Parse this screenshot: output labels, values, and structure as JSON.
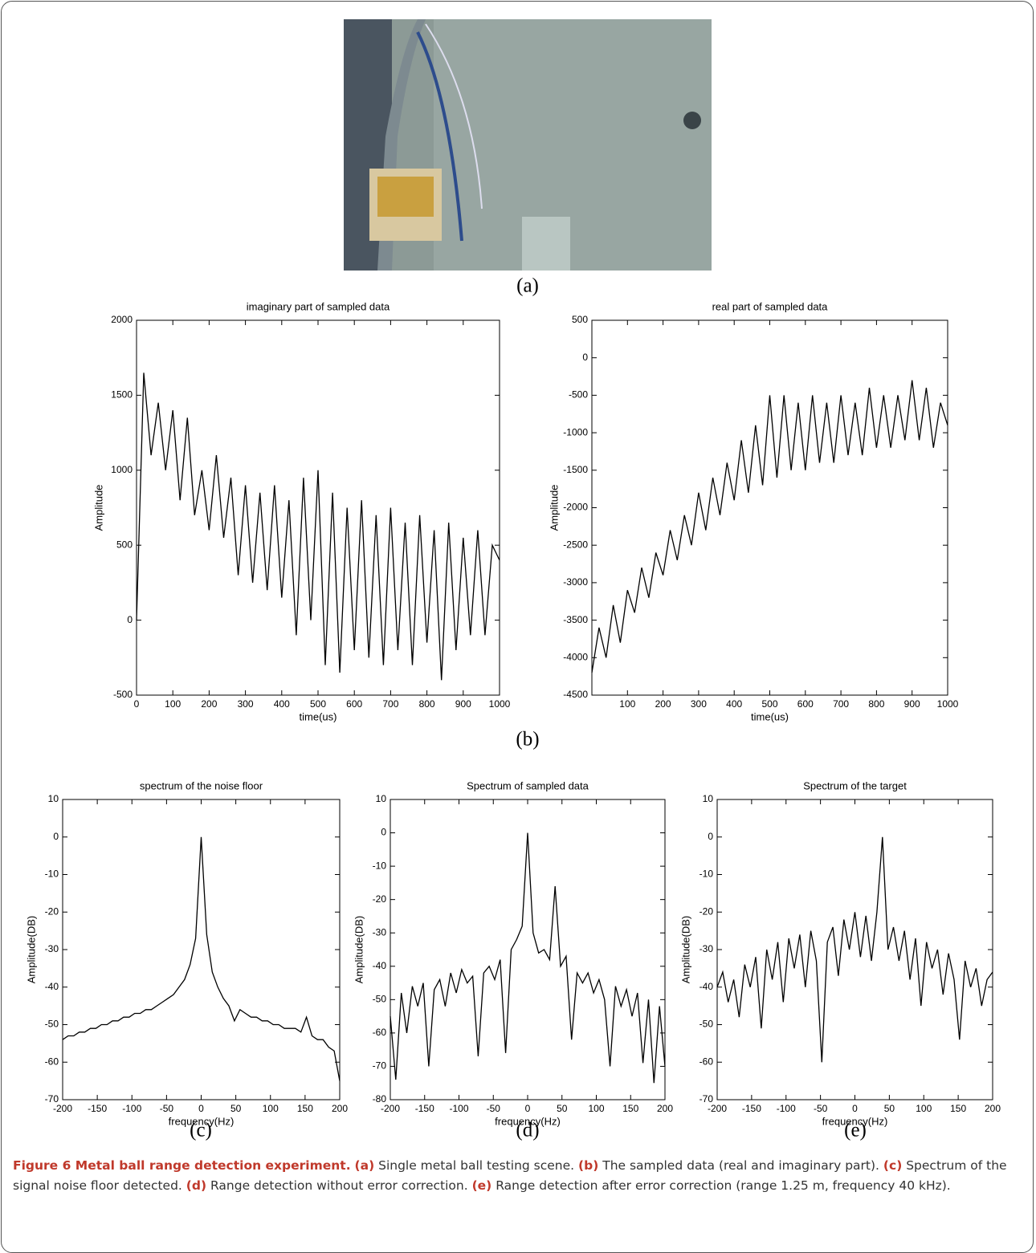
{
  "panels": [
    "(a)",
    "(b)",
    "(c)",
    "(d)",
    "(e)"
  ],
  "caption": {
    "title": "Figure 6 Metal ball range detection experiment.",
    "items": [
      {
        "tag": "(a)",
        "text": " Single metal ball testing scene."
      },
      {
        "tag": "(b)",
        "text": " The sampled data (real and imaginary part)."
      },
      {
        "tag": "(c)",
        "text": " Spectrum of the signal noise floor detected."
      },
      {
        "tag": "(d)",
        "text": " Range detection without error correction."
      },
      {
        "tag": "(e)",
        "text": " Range detection after error correction (range 1.25 m, frequency 40 kHz)."
      }
    ]
  },
  "chart_data": [
    {
      "type": "line",
      "title": "imaginary part of sampled data",
      "x_label": "time(us)",
      "y_label": "Amplitude",
      "color": "#000000",
      "x": [
        0,
        20,
        40,
        60,
        80,
        100,
        120,
        140,
        160,
        180,
        200,
        220,
        240,
        260,
        280,
        300,
        320,
        340,
        360,
        380,
        400,
        420,
        440,
        460,
        480,
        500,
        520,
        540,
        560,
        580,
        600,
        620,
        640,
        660,
        680,
        700,
        720,
        740,
        760,
        780,
        800,
        820,
        840,
        860,
        880,
        900,
        920,
        940,
        960,
        980,
        1000
      ],
      "values": [
        0,
        1650,
        1100,
        1450,
        1000,
        1400,
        800,
        1350,
        700,
        1000,
        600,
        1100,
        550,
        950,
        300,
        900,
        250,
        850,
        200,
        900,
        150,
        800,
        -100,
        950,
        0,
        1000,
        -300,
        850,
        -350,
        750,
        -200,
        800,
        -250,
        700,
        -300,
        750,
        -200,
        650,
        -300,
        700,
        -150,
        600,
        -400,
        650,
        -200,
        550,
        -100,
        600,
        -100,
        500,
        400
      ],
      "xlim": [
        0,
        1000
      ],
      "xticks": [
        0,
        100,
        200,
        300,
        400,
        500,
        600,
        700,
        800,
        900,
        1000
      ],
      "ylim": [
        -500,
        2000
      ],
      "yticks": [
        -500,
        0,
        500,
        1000,
        1500,
        2000
      ]
    },
    {
      "type": "line",
      "title": "real part of sampled data",
      "x_label": "time(us)",
      "y_label": "Amplitude",
      "color": "#000000",
      "x": [
        0,
        20,
        40,
        60,
        80,
        100,
        120,
        140,
        160,
        180,
        200,
        220,
        240,
        260,
        280,
        300,
        320,
        340,
        360,
        380,
        400,
        420,
        440,
        460,
        480,
        500,
        520,
        540,
        560,
        580,
        600,
        620,
        640,
        660,
        680,
        700,
        720,
        740,
        760,
        780,
        800,
        820,
        840,
        860,
        880,
        900,
        920,
        940,
        960,
        980,
        1000
      ],
      "values": [
        -4200,
        -3600,
        -4000,
        -3300,
        -3800,
        -3100,
        -3400,
        -2800,
        -3200,
        -2600,
        -2900,
        -2300,
        -2700,
        -2100,
        -2500,
        -1800,
        -2300,
        -1600,
        -2100,
        -1400,
        -1900,
        -1100,
        -1800,
        -900,
        -1700,
        -500,
        -1600,
        -500,
        -1500,
        -600,
        -1500,
        -500,
        -1400,
        -600,
        -1400,
        -500,
        -1300,
        -600,
        -1300,
        -400,
        -1200,
        -500,
        -1200,
        -500,
        -1100,
        -300,
        -1100,
        -400,
        -1200,
        -600,
        -900
      ],
      "xlim": [
        0,
        1000
      ],
      "xticks": [
        100,
        200,
        300,
        400,
        500,
        600,
        700,
        800,
        900,
        1000
      ],
      "ylim": [
        -4500,
        500
      ],
      "yticks": [
        -4500,
        -4000,
        -3500,
        -3000,
        -2500,
        -2000,
        -1500,
        -1000,
        -500,
        0,
        500
      ]
    },
    {
      "type": "line",
      "title": "spectrum of the noise floor",
      "x_label": "frequency(Hz)",
      "y_label": "Amplitude(DB)",
      "color": "#000000",
      "x": [
        -200,
        -192,
        -184,
        -176,
        -168,
        -160,
        -152,
        -144,
        -136,
        -128,
        -120,
        -112,
        -104,
        -96,
        -88,
        -80,
        -72,
        -64,
        -56,
        -48,
        -40,
        -32,
        -24,
        -16,
        -8,
        0,
        8,
        16,
        24,
        32,
        40,
        48,
        56,
        64,
        72,
        80,
        88,
        96,
        104,
        112,
        120,
        128,
        136,
        144,
        152,
        160,
        168,
        176,
        184,
        192,
        200
      ],
      "values": [
        -54,
        -53,
        -53,
        -52,
        -52,
        -51,
        -51,
        -50,
        -50,
        -49,
        -49,
        -48,
        -48,
        -47,
        -47,
        -46,
        -46,
        -45,
        -44,
        -43,
        -42,
        -40,
        -38,
        -34,
        -27,
        0,
        -26,
        -36,
        -40,
        -43,
        -45,
        -49,
        -46,
        -47,
        -48,
        -48,
        -49,
        -49,
        -50,
        -50,
        -51,
        -51,
        -51,
        -52,
        -48,
        -53,
        -54,
        -54,
        -56,
        -57,
        -65
      ],
      "xlim": [
        -200,
        200
      ],
      "xticks": [
        -200,
        -150,
        -100,
        -50,
        0,
        50,
        100,
        150,
        200
      ],
      "ylim": [
        -70,
        10
      ],
      "yticks": [
        -70,
        -60,
        -50,
        -40,
        -30,
        -20,
        -10,
        0,
        10
      ]
    },
    {
      "type": "line",
      "title": "Spectrum of sampled data",
      "x_label": "frequency(Hz)",
      "y_label": "Amplitude(DB)",
      "color": "#000000",
      "x": [
        -200,
        -192,
        -184,
        -176,
        -168,
        -160,
        -152,
        -144,
        -136,
        -128,
        -120,
        -112,
        -104,
        -96,
        -88,
        -80,
        -72,
        -64,
        -56,
        -48,
        -40,
        -32,
        -24,
        -16,
        -8,
        0,
        8,
        16,
        24,
        32,
        40,
        48,
        56,
        64,
        72,
        80,
        88,
        96,
        104,
        112,
        120,
        128,
        136,
        144,
        152,
        160,
        168,
        176,
        184,
        192,
        200
      ],
      "values": [
        -55,
        -74,
        -48,
        -60,
        -46,
        -52,
        -45,
        -70,
        -47,
        -44,
        -52,
        -42,
        -48,
        -41,
        -45,
        -43,
        -67,
        -42,
        -40,
        -44,
        -38,
        -66,
        -35,
        -32,
        -28,
        0,
        -30,
        -36,
        -35,
        -38,
        -16,
        -40,
        -37,
        -62,
        -42,
        -45,
        -42,
        -48,
        -44,
        -50,
        -70,
        -46,
        -52,
        -47,
        -55,
        -48,
        -69,
        -50,
        -75,
        -52,
        -70
      ],
      "xlim": [
        -200,
        200
      ],
      "xticks": [
        -200,
        -150,
        -100,
        -50,
        0,
        50,
        100,
        150,
        200
      ],
      "ylim": [
        -80,
        10
      ],
      "yticks": [
        -80,
        -70,
        -60,
        -50,
        -40,
        -30,
        -20,
        -10,
        0,
        10
      ]
    },
    {
      "type": "line",
      "title": "Spectrum of the target",
      "x_label": "frequency(Hz)",
      "y_label": "Amplitude(DB)",
      "color": "#000000",
      "x": [
        -200,
        -192,
        -184,
        -176,
        -168,
        -160,
        -152,
        -144,
        -136,
        -128,
        -120,
        -112,
        -104,
        -96,
        -88,
        -80,
        -72,
        -64,
        -56,
        -48,
        -40,
        -32,
        -24,
        -16,
        -8,
        0,
        8,
        16,
        24,
        32,
        40,
        48,
        56,
        64,
        72,
        80,
        88,
        96,
        104,
        112,
        120,
        128,
        136,
        144,
        152,
        160,
        168,
        176,
        184,
        192,
        200
      ],
      "values": [
        -40,
        -36,
        -44,
        -38,
        -48,
        -34,
        -40,
        -32,
        -51,
        -30,
        -38,
        -28,
        -44,
        -27,
        -35,
        -26,
        -40,
        -25,
        -33,
        -60,
        -28,
        -24,
        -37,
        -22,
        -30,
        -20,
        -32,
        -21,
        -33,
        -20,
        0,
        -30,
        -24,
        -33,
        -25,
        -38,
        -27,
        -45,
        -28,
        -35,
        -30,
        -42,
        -31,
        -38,
        -54,
        -33,
        -40,
        -35,
        -45,
        -38,
        -36
      ],
      "xlim": [
        -200,
        200
      ],
      "xticks": [
        -200,
        -150,
        -100,
        -50,
        0,
        50,
        100,
        150,
        200
      ],
      "ylim": [
        -70,
        10
      ],
      "yticks": [
        -70,
        -60,
        -50,
        -40,
        -30,
        -20,
        -10,
        0,
        10
      ]
    }
  ]
}
